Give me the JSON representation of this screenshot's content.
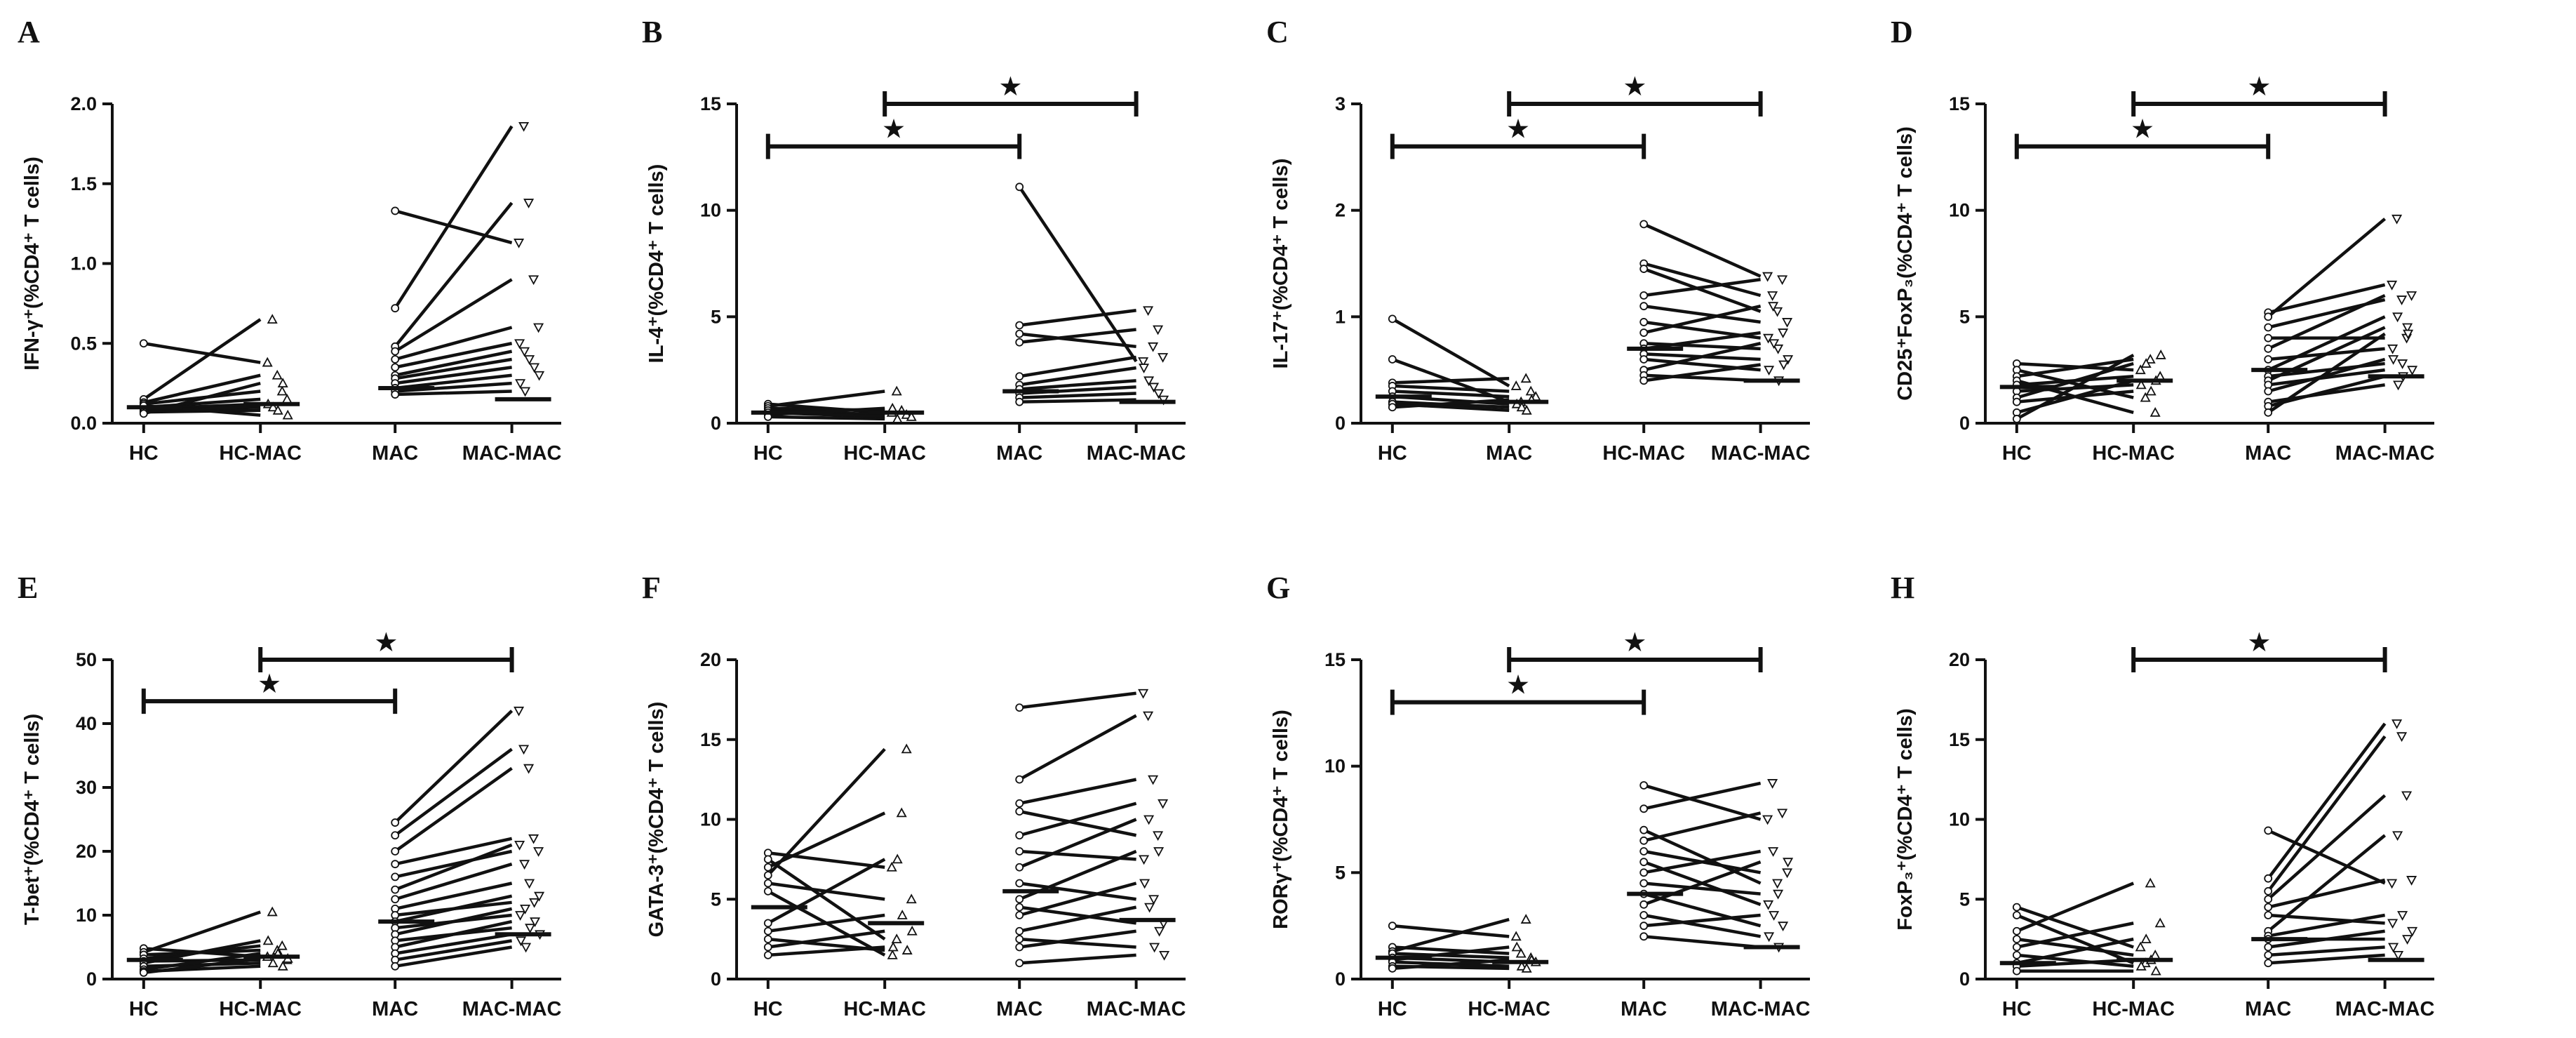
{
  "chart_data": [
    {
      "panel": "A",
      "type": "scatter",
      "ylabel": "IFN-γ⁺(%CD4⁺ T cells)",
      "categories": [
        "HC",
        "HC-MAC",
        "MAC",
        "MAC-MAC"
      ],
      "ylim": [
        0,
        2.0
      ],
      "yticks": [
        "0.0",
        "0.5",
        "1.0",
        "1.5",
        "2.0"
      ],
      "pairs": [
        {
          "from": 0,
          "to": 1,
          "values": [
            [
              0.5,
              0.38
            ],
            [
              0.15,
              0.65
            ],
            [
              0.13,
              0.3
            ],
            [
              0.12,
              0.2
            ],
            [
              0.1,
              0.15
            ],
            [
              0.09,
              0.12
            ],
            [
              0.08,
              0.1
            ],
            [
              0.07,
              0.08
            ],
            [
              0.06,
              0.25
            ],
            [
              0.11,
              0.05
            ]
          ]
        },
        {
          "from": 2,
          "to": 3,
          "values": [
            [
              1.33,
              1.13
            ],
            [
              0.72,
              1.86
            ],
            [
              0.48,
              1.38
            ],
            [
              0.45,
              0.9
            ],
            [
              0.4,
              0.6
            ],
            [
              0.35,
              0.5
            ],
            [
              0.3,
              0.45
            ],
            [
              0.28,
              0.4
            ],
            [
              0.25,
              0.35
            ],
            [
              0.22,
              0.3
            ],
            [
              0.2,
              0.25
            ],
            [
              0.18,
              0.2
            ]
          ]
        }
      ],
      "medians": [
        0.1,
        0.12,
        0.22,
        0.15
      ],
      "significance": []
    },
    {
      "panel": "B",
      "type": "scatter",
      "ylabel": "IL-4⁺(%CD4⁺ T cells)",
      "categories": [
        "HC",
        "HC-MAC",
        "MAC",
        "MAC-MAC"
      ],
      "ylim": [
        0,
        15
      ],
      "yticks": [
        "0",
        "5",
        "10",
        "15"
      ],
      "pairs": [
        {
          "from": 0,
          "to": 1,
          "values": [
            [
              0.9,
              0.5
            ],
            [
              0.8,
              1.5
            ],
            [
              0.7,
              0.6
            ],
            [
              0.6,
              0.4
            ],
            [
              0.5,
              0.3
            ],
            [
              0.4,
              0.7
            ],
            [
              0.3,
              0.2
            ]
          ]
        },
        {
          "from": 2,
          "to": 3,
          "values": [
            [
              11.1,
              2.9
            ],
            [
              4.6,
              5.3
            ],
            [
              4.2,
              3.6
            ],
            [
              3.8,
              4.4
            ],
            [
              2.2,
              3.1
            ],
            [
              1.8,
              2.6
            ],
            [
              1.6,
              2.0
            ],
            [
              1.4,
              1.7
            ],
            [
              1.2,
              1.4
            ],
            [
              1.0,
              1.1
            ]
          ]
        }
      ],
      "medians": [
        0.5,
        0.5,
        1.5,
        1.0
      ],
      "significance": [
        {
          "from": 0,
          "to": 2,
          "level": 13,
          "label": "★"
        },
        {
          "from": 1,
          "to": 3,
          "level": 15,
          "label": "★"
        }
      ]
    },
    {
      "panel": "C",
      "type": "scatter",
      "ylabel": "IL-17⁺(%CD4⁺ T cells)",
      "categories": [
        "HC",
        "MAC",
        "HC-MAC",
        "MAC-MAC"
      ],
      "ylim": [
        0,
        3
      ],
      "yticks": [
        "0",
        "1",
        "2",
        "3"
      ],
      "pairs": [
        {
          "from": 0,
          "to": 1,
          "values": [
            [
              0.98,
              0.35
            ],
            [
              0.6,
              0.2
            ],
            [
              0.38,
              0.42
            ],
            [
              0.35,
              0.3
            ],
            [
              0.3,
              0.25
            ],
            [
              0.25,
              0.18
            ],
            [
              0.2,
              0.15
            ],
            [
              0.18,
              0.12
            ],
            [
              0.15,
              0.22
            ]
          ]
        },
        {
          "from": 2,
          "to": 3,
          "values": [
            [
              1.87,
              1.38
            ],
            [
              1.5,
              1.2
            ],
            [
              1.45,
              1.05
            ],
            [
              1.2,
              1.35
            ],
            [
              1.1,
              0.95
            ],
            [
              0.95,
              0.8
            ],
            [
              0.85,
              1.1
            ],
            [
              0.75,
              0.7
            ],
            [
              0.7,
              0.85
            ],
            [
              0.65,
              0.6
            ],
            [
              0.6,
              0.5
            ],
            [
              0.5,
              0.75
            ],
            [
              0.45,
              0.4
            ],
            [
              0.4,
              0.55
            ]
          ]
        }
      ],
      "medians": [
        0.25,
        0.2,
        0.7,
        0.4
      ],
      "significance": [
        {
          "from": 0,
          "to": 2,
          "level": 2.6,
          "label": "★"
        },
        {
          "from": 1,
          "to": 3,
          "level": 3.0,
          "label": "★"
        }
      ]
    },
    {
      "panel": "D",
      "type": "scatter",
      "ylabel": "CD25⁺FoxP₃(%CD4⁺ T cells)",
      "categories": [
        "HC",
        "HC-MAC",
        "MAC",
        "MAC-MAC"
      ],
      "ylim": [
        0,
        15
      ],
      "yticks": [
        "0",
        "5",
        "10",
        "15"
      ],
      "pairs": [
        {
          "from": 0,
          "to": 1,
          "values": [
            [
              2.8,
              2.5
            ],
            [
              2.5,
              1.2
            ],
            [
              2.2,
              3.0
            ],
            [
              2.0,
              0.5
            ],
            [
              1.8,
              2.2
            ],
            [
              1.5,
              1.8
            ],
            [
              1.2,
              2.8
            ],
            [
              1.0,
              1.5
            ],
            [
              0.5,
              2.0
            ],
            [
              0.2,
              3.2
            ]
          ]
        },
        {
          "from": 2,
          "to": 3,
          "values": [
            [
              5.2,
              6.5
            ],
            [
              5.0,
              9.6
            ],
            [
              4.5,
              5.8
            ],
            [
              4.0,
              4.0
            ],
            [
              3.5,
              6.0
            ],
            [
              3.0,
              3.5
            ],
            [
              2.5,
              5.0
            ],
            [
              2.2,
              2.8
            ],
            [
              2.0,
              4.5
            ],
            [
              1.8,
              2.5
            ],
            [
              1.5,
              3.0
            ],
            [
              1.0,
              1.8
            ],
            [
              0.8,
              2.2
            ],
            [
              0.5,
              4.2
            ]
          ]
        }
      ],
      "medians": [
        1.7,
        2.0,
        2.5,
        2.2
      ],
      "significance": [
        {
          "from": 0,
          "to": 2,
          "level": 13,
          "label": "★"
        },
        {
          "from": 1,
          "to": 3,
          "level": 15,
          "label": "★"
        }
      ]
    },
    {
      "panel": "E",
      "type": "scatter",
      "ylabel": "T-bet⁺(%CD4⁺ T cells)",
      "categories": [
        "HC",
        "HC-MAC",
        "MAC",
        "MAC-MAC"
      ],
      "ylim": [
        0,
        50
      ],
      "yticks": [
        "0",
        "10",
        "20",
        "30",
        "40",
        "50"
      ],
      "pairs": [
        {
          "from": 0,
          "to": 1,
          "values": [
            [
              4.8,
              3.5
            ],
            [
              4.2,
              10.5
            ],
            [
              3.8,
              4.5
            ],
            [
              3.2,
              5.2
            ],
            [
              2.8,
              3.0
            ],
            [
              2.5,
              6.0
            ],
            [
              2.0,
              2.5
            ],
            [
              1.5,
              4.0
            ],
            [
              1.2,
              2.0
            ],
            [
              1.0,
              3.2
            ]
          ]
        },
        {
          "from": 2,
          "to": 3,
          "values": [
            [
              24.5,
              42
            ],
            [
              22.5,
              36
            ],
            [
              20,
              33
            ],
            [
              18,
              22
            ],
            [
              16,
              20
            ],
            [
              14,
              21
            ],
            [
              12.5,
              18
            ],
            [
              11,
              15
            ],
            [
              10,
              12
            ],
            [
              9,
              13
            ],
            [
              8,
              10
            ],
            [
              7,
              11
            ],
            [
              6,
              8
            ],
            [
              5,
              9
            ],
            [
              4,
              7
            ],
            [
              3,
              6
            ],
            [
              2,
              5
            ]
          ]
        }
      ],
      "medians": [
        3.0,
        3.5,
        9.0,
        7.0
      ],
      "significance": [
        {
          "from": 0,
          "to": 2,
          "level": 43.5,
          "label": "★"
        },
        {
          "from": 1,
          "to": 3,
          "level": 50,
          "label": "★"
        }
      ]
    },
    {
      "panel": "F",
      "type": "scatter",
      "ylabel": "GATA-3⁺(%CD4⁺ T cells)",
      "categories": [
        "HC",
        "HC-MAC",
        "MAC",
        "MAC-MAC"
      ],
      "ylim": [
        0,
        20
      ],
      "yticks": [
        "0",
        "5",
        "10",
        "15",
        "20"
      ],
      "pairs": [
        {
          "from": 0,
          "to": 1,
          "values": [
            [
              7.9,
              7.0
            ],
            [
              7.5,
              2.5
            ],
            [
              7.0,
              10.4
            ],
            [
              6.5,
              14.4
            ],
            [
              6.0,
              5.0
            ],
            [
              5.5,
              1.5
            ],
            [
              3.5,
              7.5
            ],
            [
              3.0,
              4.0
            ],
            [
              2.5,
              1.8
            ],
            [
              2.0,
              3.0
            ],
            [
              1.5,
              2.0
            ]
          ]
        },
        {
          "from": 2,
          "to": 3,
          "values": [
            [
              17.0,
              17.9
            ],
            [
              12.5,
              16.5
            ],
            [
              11.0,
              12.5
            ],
            [
              10.5,
              9.0
            ],
            [
              9.0,
              11.0
            ],
            [
              8.0,
              7.5
            ],
            [
              7.0,
              10.0
            ],
            [
              6.0,
              5.0
            ],
            [
              5.0,
              8.0
            ],
            [
              4.5,
              3.5
            ],
            [
              4.0,
              6.0
            ],
            [
              3.0,
              4.5
            ],
            [
              2.5,
              2.0
            ],
            [
              2.0,
              3.0
            ],
            [
              1.0,
              1.5
            ]
          ]
        }
      ],
      "medians": [
        4.5,
        3.5,
        5.5,
        3.7
      ],
      "significance": []
    },
    {
      "panel": "G",
      "type": "scatter",
      "ylabel": "RORγ⁺(%CD4⁺ T cells)",
      "categories": [
        "HC",
        "HC-MAC",
        "MAC",
        "MAC-MAC"
      ],
      "ylim": [
        0,
        15
      ],
      "yticks": [
        "0",
        "5",
        "10",
        "15"
      ],
      "pairs": [
        {
          "from": 0,
          "to": 1,
          "values": [
            [
              2.5,
              2.0
            ],
            [
              1.5,
              1.2
            ],
            [
              1.3,
              2.8
            ],
            [
              1.2,
              1.0
            ],
            [
              1.0,
              0.8
            ],
            [
              0.9,
              1.5
            ],
            [
              0.8,
              0.6
            ],
            [
              0.6,
              0.5
            ],
            [
              0.5,
              0.9
            ]
          ]
        },
        {
          "from": 2,
          "to": 3,
          "values": [
            [
              9.1,
              7.5
            ],
            [
              8.0,
              9.2
            ],
            [
              7.0,
              4.5
            ],
            [
              6.5,
              7.8
            ],
            [
              6.0,
              5.0
            ],
            [
              5.5,
              3.5
            ],
            [
              5.0,
              6.0
            ],
            [
              4.5,
              4.0
            ],
            [
              4.0,
              2.5
            ],
            [
              3.5,
              5.5
            ],
            [
              3.0,
              2.0
            ],
            [
              2.5,
              3.0
            ],
            [
              2.0,
              1.5
            ]
          ]
        }
      ],
      "medians": [
        1.0,
        0.8,
        4.0,
        1.5
      ],
      "significance": [
        {
          "from": 0,
          "to": 2,
          "level": 13,
          "label": "★"
        },
        {
          "from": 1,
          "to": 3,
          "level": 15,
          "label": "★"
        }
      ]
    },
    {
      "panel": "H",
      "type": "scatter",
      "ylabel": "FoxP₃⁺(%CD4⁺ T cells)",
      "categories": [
        "HC",
        "HC-MAC",
        "MAC",
        "MAC-MAC"
      ],
      "ylim": [
        0,
        20
      ],
      "yticks": [
        "0",
        "5",
        "10",
        "15",
        "20"
      ],
      "pairs": [
        {
          "from": 0,
          "to": 1,
          "values": [
            [
              4.5,
              2.0
            ],
            [
              4.0,
              1.0
            ],
            [
              3.0,
              6.0
            ],
            [
              2.5,
              1.5
            ],
            [
              2.0,
              3.5
            ],
            [
              1.5,
              0.8
            ],
            [
              1.0,
              2.5
            ],
            [
              0.8,
              1.2
            ],
            [
              0.5,
              0.5
            ]
          ]
        },
        {
          "from": 2,
          "to": 3,
          "values": [
            [
              9.3,
              6.0
            ],
            [
              6.3,
              16.0
            ],
            [
              5.5,
              15.2
            ],
            [
              5.0,
              11.5
            ],
            [
              4.5,
              6.2
            ],
            [
              4.0,
              3.5
            ],
            [
              3.0,
              9.0
            ],
            [
              2.7,
              4.0
            ],
            [
              2.5,
              2.5
            ],
            [
              2.0,
              3.0
            ],
            [
              1.5,
              2.0
            ],
            [
              1.0,
              1.5
            ]
          ]
        }
      ],
      "medians": [
        1.0,
        1.2,
        2.5,
        1.2
      ],
      "significance": [
        {
          "from": 1,
          "to": 3,
          "level": 20,
          "label": "★"
        }
      ]
    }
  ]
}
